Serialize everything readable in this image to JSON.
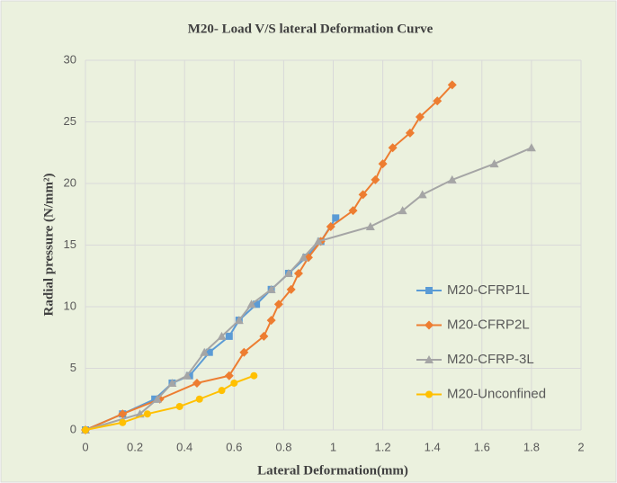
{
  "chart_data": {
    "type": "line",
    "title": "M20- Load V/S lateral Deformation Curve",
    "x_label": "Lateral Deformation(mm)",
    "y_label": "Radial pressure (N/mm²)",
    "xlim": [
      0,
      2
    ],
    "ylim": [
      0,
      30
    ],
    "xticks": [
      0,
      0.2,
      0.4,
      0.6,
      0.8,
      1,
      1.2,
      1.4,
      1.6,
      1.8,
      2
    ],
    "yticks": [
      0,
      5,
      10,
      15,
      20,
      25,
      30
    ],
    "grid": true,
    "legend": "right",
    "series": [
      {
        "name": "M20-CFRP1L",
        "color": "#5b9bd5",
        "marker": "square",
        "x": [
          0,
          0.15,
          0.28,
          0.35,
          0.42,
          0.5,
          0.58,
          0.62,
          0.69,
          0.75,
          0.82,
          0.89,
          0.95,
          1.01
        ],
        "values": [
          0,
          1.3,
          2.5,
          3.8,
          4.4,
          6.3,
          7.6,
          8.9,
          10.2,
          11.4,
          12.7,
          14,
          15.3,
          17.2
        ]
      },
      {
        "name": "M20-CFRP2L",
        "color": "#ed7d31",
        "marker": "diamond",
        "x": [
          0,
          0.15,
          0.3,
          0.45,
          0.58,
          0.64,
          0.72,
          0.75,
          0.78,
          0.83,
          0.86,
          0.9,
          0.95,
          0.99,
          1.08,
          1.12,
          1.17,
          1.2,
          1.24,
          1.31,
          1.35,
          1.42,
          1.48
        ],
        "values": [
          0,
          1.3,
          2.5,
          3.8,
          4.4,
          6.3,
          7.6,
          8.9,
          10.2,
          11.4,
          12.7,
          14,
          15.3,
          16.5,
          17.8,
          19.1,
          20.3,
          21.6,
          22.9,
          24.1,
          25.4,
          26.7,
          28
        ]
      },
      {
        "name": "M20-CFRP-3L",
        "color": "#a5a5a5",
        "marker": "triangle",
        "x": [
          0,
          0.22,
          0.29,
          0.35,
          0.41,
          0.48,
          0.55,
          0.62,
          0.67,
          0.75,
          0.82,
          0.88,
          0.94,
          1.15,
          1.28,
          1.36,
          1.48,
          1.65,
          1.8
        ],
        "values": [
          0,
          1.3,
          2.5,
          3.8,
          4.4,
          6.3,
          7.6,
          8.9,
          10.2,
          11.4,
          12.7,
          14,
          15.3,
          16.5,
          17.8,
          19.1,
          20.3,
          21.6,
          22.9
        ]
      },
      {
        "name": "M20-Unconfined",
        "color": "#ffc000",
        "marker": "circle",
        "x": [
          0,
          0.15,
          0.25,
          0.38,
          0.46,
          0.55,
          0.6,
          0.68
        ],
        "values": [
          0,
          0.6,
          1.3,
          1.9,
          2.5,
          3.2,
          3.8,
          4.4
        ]
      }
    ]
  }
}
